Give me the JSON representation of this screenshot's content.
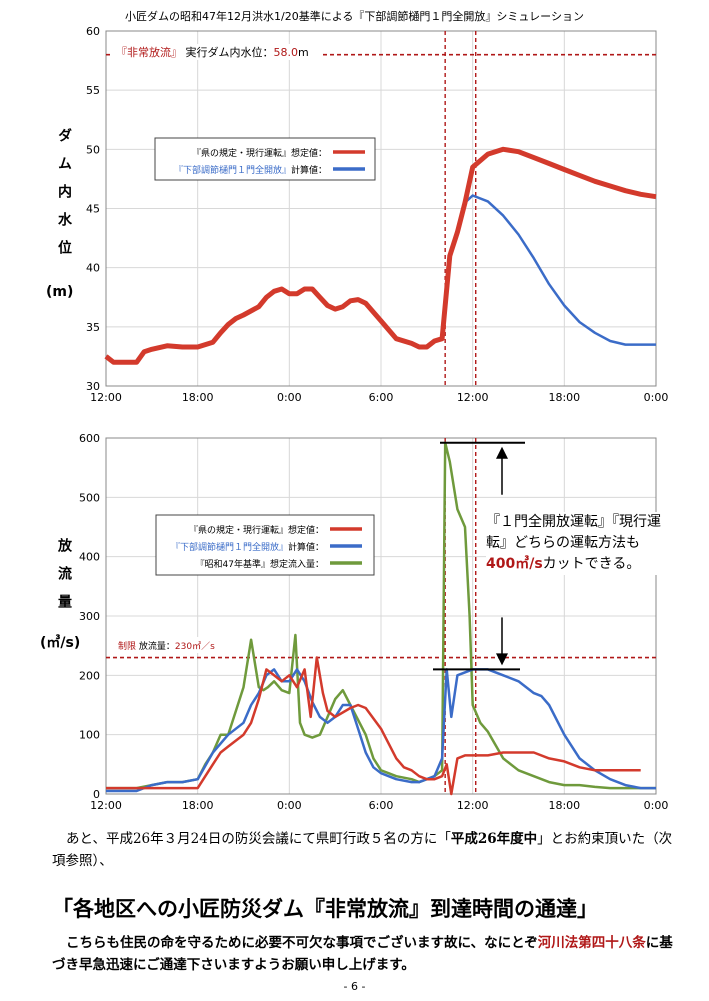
{
  "title": "小匠ダムの昭和47年12月洪水1/20基準による『下部調節樋門１門全開放』シミュレーション",
  "chart_data": [
    {
      "type": "line",
      "ylabel": "ダム内水位",
      "ylabel_unit": "(m)",
      "ylim": [
        30,
        60
      ],
      "yticks": [
        30,
        35,
        40,
        45,
        50,
        55,
        60
      ],
      "xlim": [
        0,
        36
      ],
      "xticks": [
        "12:00",
        "18:00",
        "0:00",
        "6:00",
        "12:00",
        "18:00",
        "0:00"
      ],
      "grid": true,
      "legend_position": "upper-left",
      "reference_line": {
        "value": 58.0,
        "label_bracket": "『非常放流』",
        "label_text": "実行ダム内水位：",
        "label_value": "58.0",
        "label_unit": "m"
      },
      "vlines": [
        22.2,
        24.2
      ],
      "series": [
        {
          "name_bracket": "『県の規定・現行運転』",
          "name_suffix": "想定値：",
          "color": "#d33a2c",
          "x": [
            0,
            0.5,
            1,
            2,
            2.5,
            3,
            4,
            5,
            6,
            7,
            7.5,
            8,
            8.5,
            9,
            10,
            10.5,
            11,
            11.5,
            12,
            12.5,
            13,
            13.5,
            14,
            14.5,
            15,
            15.5,
            16,
            16.5,
            17,
            18,
            19,
            20,
            20.5,
            21,
            21.5,
            22,
            22.5,
            23,
            23.5,
            24,
            25,
            26,
            27,
            28,
            29,
            30,
            31,
            32,
            33,
            34,
            35,
            36
          ],
          "y": [
            32.5,
            32.0,
            32.0,
            32.0,
            32.9,
            33.1,
            33.4,
            33.3,
            33.3,
            33.7,
            34.5,
            35.2,
            35.7,
            36.0,
            36.7,
            37.5,
            38.0,
            38.2,
            37.8,
            37.8,
            38.2,
            38.2,
            37.5,
            36.8,
            36.5,
            36.7,
            37.2,
            37.3,
            37.0,
            35.5,
            34.0,
            33.6,
            33.3,
            33.3,
            33.8,
            34.0,
            41.0,
            43.0,
            45.5,
            48.5,
            49.6,
            50.0,
            49.8,
            49.3,
            48.8,
            48.3,
            47.8,
            47.3,
            46.9,
            46.5,
            46.2,
            46.0
          ]
        },
        {
          "name_bracket": "『下部調節樋門１門全開放』",
          "name_suffix": "計算値：",
          "color": "#3b6cc8",
          "x": [
            0,
            0.5,
            1,
            2,
            2.5,
            3,
            4,
            5,
            6,
            7,
            7.5,
            8,
            8.5,
            9,
            10,
            10.5,
            11,
            11.5,
            12,
            12.5,
            13,
            13.5,
            14,
            14.5,
            15,
            15.5,
            16,
            16.5,
            17,
            18,
            19,
            20,
            20.5,
            21,
            21.5,
            22,
            22.5,
            23,
            23.5,
            24,
            25,
            26,
            27,
            28,
            29,
            30,
            31,
            32,
            33,
            34,
            35,
            36
          ],
          "y": [
            32.5,
            32.0,
            32.0,
            32.0,
            32.9,
            33.1,
            33.4,
            33.3,
            33.3,
            33.7,
            34.5,
            35.2,
            35.7,
            36.0,
            36.7,
            37.5,
            38.0,
            38.2,
            37.8,
            37.8,
            38.2,
            38.2,
            37.5,
            36.8,
            36.5,
            36.7,
            37.2,
            37.3,
            37.0,
            35.5,
            34.0,
            33.6,
            33.3,
            33.3,
            33.8,
            34.0,
            41.0,
            43.0,
            45.5,
            46.1,
            45.6,
            44.4,
            42.8,
            40.8,
            38.6,
            36.8,
            35.4,
            34.5,
            33.8,
            33.5,
            33.5,
            33.5
          ]
        }
      ]
    },
    {
      "type": "line",
      "ylabel": "放流量",
      "ylabel_unit": "(㎥/s)",
      "ylim": [
        0,
        600
      ],
      "yticks": [
        0,
        100,
        200,
        300,
        400,
        500,
        600
      ],
      "xlim": [
        0,
        36
      ],
      "xticks": [
        "12:00",
        "18:00",
        "0:00",
        "6:00",
        "12:00",
        "18:00",
        "0:00"
      ],
      "grid": true,
      "legend_position": "center-left",
      "reference_line": {
        "value": 230,
        "label_bracket": "制限",
        "label_text": "放流量：",
        "label_value": "230㎥／s"
      },
      "vlines": [
        22.2,
        24.2
      ],
      "annotation": {
        "bracket": "『１門全開放運転』『現行運転』",
        "text_a": "どちらの運転方法も",
        "highlight": "400㎥/s",
        "text_b": "カットできる。",
        "top_value": 592,
        "bottom_value": 210
      },
      "series": [
        {
          "name_bracket": "『県の規定・現行運転』",
          "name_suffix": "想定値：",
          "color": "#d33a2c",
          "x": [
            0,
            3,
            6,
            6.5,
            7,
            7.5,
            8,
            9,
            9.5,
            10,
            10.5,
            11,
            11.5,
            12,
            12.5,
            13,
            13.4,
            13.8,
            14.2,
            14.5,
            15,
            16,
            16.5,
            17,
            18,
            19,
            19.5,
            20,
            20.5,
            21,
            21.5,
            22,
            22.3,
            22.6,
            23,
            23.5,
            24,
            25,
            26,
            27,
            28,
            29,
            30,
            31,
            32,
            33,
            34,
            35
          ],
          "y": [
            10,
            10,
            10,
            30,
            50,
            70,
            80,
            100,
            120,
            160,
            210,
            200,
            190,
            200,
            180,
            210,
            130,
            230,
            170,
            140,
            130,
            145,
            150,
            145,
            110,
            60,
            45,
            40,
            30,
            25,
            25,
            30,
            50,
            0,
            60,
            65,
            65,
            65,
            70,
            70,
            70,
            60,
            55,
            45,
            40,
            40,
            40,
            40
          ]
        },
        {
          "name_bracket": "『下部調節樋門１門全開放』",
          "name_suffix": "計算値：",
          "color": "#3b6cc8",
          "x": [
            0,
            1,
            2,
            3,
            4,
            5,
            6,
            7,
            8,
            9,
            9.5,
            10,
            10.5,
            11,
            11.5,
            12,
            12.5,
            13,
            13.5,
            14,
            14.5,
            15,
            15.5,
            16,
            16.5,
            17,
            17.5,
            18,
            18.5,
            19,
            20,
            20.5,
            21,
            21.5,
            22,
            22.3,
            22.6,
            23,
            24,
            25,
            26,
            27,
            28,
            28.5,
            29,
            30,
            31,
            32,
            33,
            34,
            35,
            36
          ],
          "y": [
            5,
            5,
            5,
            15,
            20,
            20,
            25,
            70,
            100,
            120,
            150,
            170,
            200,
            210,
            190,
            190,
            210,
            190,
            155,
            130,
            120,
            130,
            150,
            150,
            110,
            70,
            45,
            35,
            30,
            25,
            20,
            20,
            25,
            30,
            60,
            210,
            130,
            200,
            210,
            210,
            200,
            190,
            170,
            165,
            150,
            100,
            60,
            40,
            25,
            15,
            10,
            10
          ]
        },
        {
          "name_bracket": "『昭和47年基準』",
          "name_suffix": "想定流入量：",
          "color": "#6f9a3c",
          "x": [
            0,
            2,
            3,
            4,
            5,
            6,
            6.5,
            7,
            7.5,
            8,
            8.5,
            9,
            9.5,
            10,
            10.3,
            10.6,
            11,
            11.5,
            12,
            12.4,
            12.7,
            13,
            13.5,
            14,
            15,
            15.5,
            16,
            17,
            17.5,
            18,
            18.5,
            19,
            20,
            20.5,
            21,
            21.5,
            22,
            22.2,
            22.5,
            23,
            23.5,
            23.8,
            24,
            24.5,
            25,
            26,
            27,
            28,
            29,
            30,
            31,
            32,
            33,
            34,
            35,
            36
          ],
          "y": [
            10,
            10,
            15,
            20,
            20,
            25,
            50,
            70,
            100,
            100,
            140,
            180,
            260,
            180,
            175,
            180,
            190,
            175,
            170,
            268,
            120,
            100,
            95,
            100,
            160,
            175,
            150,
            100,
            60,
            40,
            35,
            30,
            25,
            20,
            25,
            30,
            40,
            592,
            560,
            480,
            450,
            300,
            150,
            120,
            105,
            60,
            40,
            30,
            20,
            15,
            15,
            12,
            10,
            10,
            10,
            10
          ]
        }
      ]
    }
  ],
  "body": {
    "para1_a": "あと、平成26年３月24日の防災会議にて県町行政５名の方に「",
    "para1_bold": "平成26年度中",
    "para1_b": "」とお約束頂いた（次項参照）、",
    "heading": "「各地区への小匠防災ダム『非常放流』到達時間の通達」",
    "para2_a": "こちらも住民の命を守るために必要不可欠な事項でございます故に、なにとぞ",
    "para2_red": "河川法第四十八条",
    "para2_b": "に基づき早急迅速にご通達下さいますようお願い申し上げます。",
    "page_number": "- 6 -"
  }
}
